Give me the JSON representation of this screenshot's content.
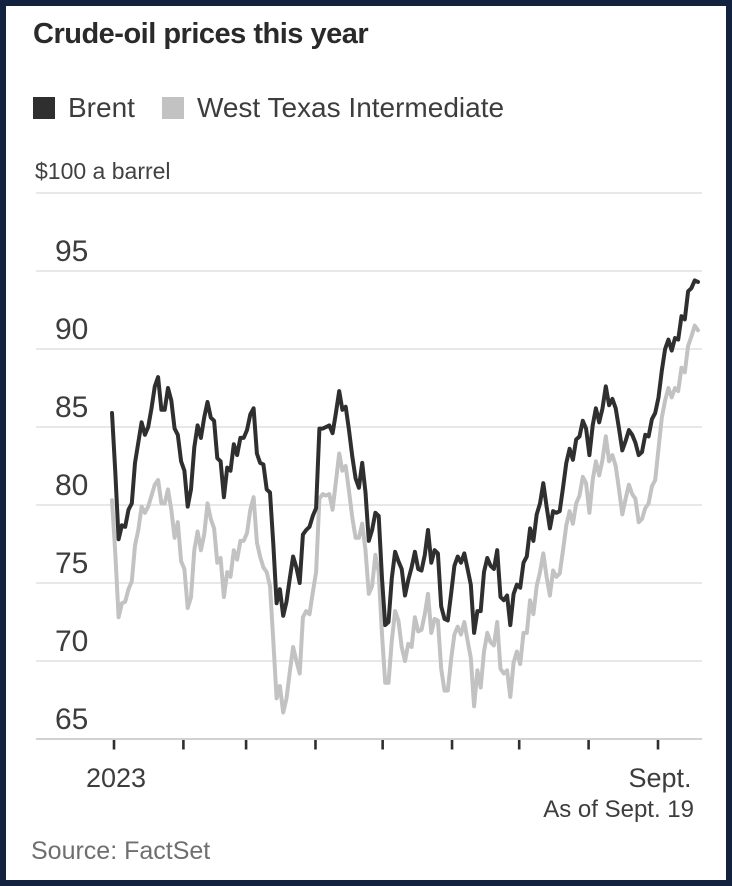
{
  "header": {
    "title": "Crude-oil prices this year"
  },
  "legend": {
    "items": [
      {
        "label": "Brent",
        "color": "#2f2f2f"
      },
      {
        "label": "West Texas Intermediate",
        "color": "#c2c2c2"
      }
    ]
  },
  "footer": {
    "as_of": "As of Sept. 19",
    "source": "Source: FactSet"
  },
  "colors": {
    "border": "#13233f",
    "brent": "#2f2f2f",
    "wti": "#c2c2c2",
    "grid": "#e1e1e1",
    "axis_line": "#c4c4c4",
    "tick": "#2f2f2f",
    "axis_text": "#3d3d3d",
    "source_text": "#6f6f6f"
  },
  "chart_data": {
    "type": "line",
    "title": "Crude-oil prices this year",
    "ylabel": "$100 a barrel",
    "ylim": [
      65,
      100
    ],
    "gridlines": [
      100,
      95,
      90,
      85,
      80,
      75,
      70,
      65
    ],
    "yticks": [
      95,
      90,
      85,
      80,
      75,
      70,
      65
    ],
    "grid_on": true,
    "legend_position": "top-left",
    "x_unit": "trading days, Jan 2023 - Sept. 19",
    "xticks": [
      {
        "label": "2023",
        "day": 0
      },
      {
        "label": "",
        "day": 31
      },
      {
        "label": "",
        "day": 59
      },
      {
        "label": "",
        "day": 90
      },
      {
        "label": "",
        "day": 120
      },
      {
        "label": "",
        "day": 151
      },
      {
        "label": "",
        "day": 181
      },
      {
        "label": "",
        "day": 212
      },
      {
        "label": "Sept.",
        "day": 243
      }
    ],
    "total_days": 261,
    "series": [
      {
        "name": "Brent",
        "color": "#2f2f2f",
        "values": [
          85.9,
          82.1,
          77.8,
          78.7,
          78.6,
          79.7,
          80.1,
          82.7,
          84.0,
          85.3,
          84.5,
          85.0,
          86.2,
          87.6,
          88.2,
          86.1,
          86.1,
          87.5,
          86.7,
          84.9,
          84.5,
          82.8,
          82.2,
          79.9,
          81.0,
          83.7,
          85.1,
          84.3,
          85.6,
          86.6,
          85.6,
          85.4,
          83.0,
          82.8,
          80.5,
          82.4,
          82.2,
          83.9,
          83.2,
          84.3,
          84.3,
          84.8,
          85.8,
          86.2,
          83.3,
          82.7,
          82.6,
          81.0,
          80.8,
          77.5,
          73.7,
          74.6,
          72.9,
          73.8,
          75.3,
          76.7,
          76.0,
          75.0,
          78.1,
          78.4,
          78.6,
          79.3,
          79.8,
          84.9,
          84.9,
          85.0,
          85.1,
          84.6,
          85.9,
          87.3,
          86.1,
          86.3,
          84.8,
          83.1,
          81.7,
          81.1,
          82.7,
          80.8,
          77.7,
          78.4,
          79.5,
          79.3,
          75.3,
          72.3,
          72.5,
          75.3,
          77.0,
          76.4,
          75.9,
          74.2,
          75.2,
          76.0,
          77.0,
          75.9,
          75.8,
          76.8,
          78.4,
          76.3,
          77.1,
          76.9,
          73.5,
          72.7,
          72.6,
          74.3,
          76.1,
          76.7,
          76.3,
          76.9,
          75.9,
          74.9,
          71.8,
          73.2,
          73.2,
          75.7,
          76.6,
          76.1,
          75.9,
          77.1,
          74.1,
          73.9,
          74.2,
          72.3,
          74.3,
          74.9,
          74.7,
          76.3,
          76.7,
          78.5,
          77.7,
          79.4,
          80.1,
          81.4,
          79.9,
          78.5,
          79.6,
          79.5,
          79.6,
          81.1,
          82.7,
          83.6,
          82.9,
          84.2,
          84.4,
          85.4,
          84.9,
          83.2,
          85.1,
          86.2,
          85.3,
          86.2,
          87.6,
          86.4,
          86.8,
          86.2,
          84.9,
          83.5,
          84.1,
          84.8,
          84.5,
          84.0,
          83.2,
          83.4,
          84.5,
          84.4,
          85.5,
          85.9,
          86.9,
          88.6,
          90.0,
          90.6,
          89.9,
          90.7,
          90.6,
          92.1,
          91.9,
          93.7,
          93.9,
          94.4,
          94.3
        ]
      },
      {
        "name": "West Texas Intermediate",
        "color": "#c2c2c2",
        "values": [
          80.3,
          76.9,
          72.8,
          73.7,
          73.8,
          74.6,
          75.1,
          77.4,
          78.4,
          79.9,
          79.5,
          79.9,
          80.6,
          81.3,
          81.6,
          80.1,
          80.1,
          81.0,
          79.7,
          77.9,
          78.9,
          76.4,
          75.9,
          73.4,
          74.1,
          77.1,
          78.3,
          77.1,
          78.1,
          80.1,
          79.1,
          78.5,
          76.3,
          76.6,
          74.1,
          75.7,
          75.4,
          77.1,
          76.5,
          77.7,
          77.7,
          78.2,
          79.7,
          80.5,
          77.6,
          76.7,
          76.0,
          75.7,
          74.8,
          71.3,
          67.6,
          68.4,
          66.7,
          67.6,
          69.3,
          70.9,
          70.0,
          69.2,
          72.8,
          73.2,
          73.0,
          74.4,
          75.7,
          80.4,
          80.7,
          80.6,
          80.7,
          79.7,
          81.5,
          83.3,
          82.2,
          82.5,
          80.9,
          79.2,
          77.9,
          77.9,
          78.8,
          77.1,
          74.3,
          74.8,
          76.8,
          75.7,
          71.7,
          68.6,
          68.6,
          71.3,
          73.2,
          72.6,
          70.9,
          70.0,
          71.1,
          70.9,
          72.8,
          71.9,
          72.0,
          73.0,
          74.3,
          71.8,
          72.7,
          72.6,
          69.5,
          68.1,
          68.1,
          70.1,
          71.7,
          72.2,
          71.7,
          72.5,
          71.3,
          70.2,
          67.1,
          69.4,
          68.3,
          70.6,
          71.8,
          71.2,
          71.0,
          72.5,
          69.5,
          69.2,
          69.4,
          67.7,
          69.9,
          70.6,
          69.8,
          71.8,
          71.8,
          73.9,
          73.0,
          74.8,
          75.7,
          76.9,
          75.4,
          74.2,
          75.8,
          75.4,
          75.6,
          77.1,
          78.7,
          79.6,
          78.8,
          80.1,
          80.6,
          81.8,
          81.4,
          79.5,
          81.6,
          82.8,
          81.9,
          82.9,
          84.4,
          82.8,
          83.2,
          82.5,
          81.0,
          79.4,
          80.4,
          81.3,
          80.7,
          80.4,
          78.9,
          79.1,
          79.8,
          80.1,
          81.2,
          81.6,
          83.6,
          85.6,
          86.7,
          87.5,
          86.9,
          87.5,
          87.3,
          88.8,
          88.5,
          90.2,
          90.8,
          91.5,
          91.2
        ]
      }
    ]
  }
}
